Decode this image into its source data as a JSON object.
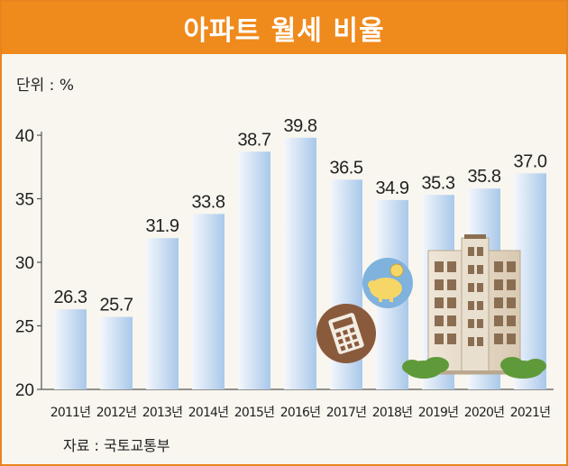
{
  "header": {
    "title": "아파트 월세 비율"
  },
  "unit_label": "단위 : %",
  "source_label": "자료 : 국토교통부",
  "colors": {
    "header": "#ef8a1c",
    "bar_top": "#f4f7fc",
    "bar_bottom": "#a9c8ea",
    "background": "#f8f6ef"
  },
  "chart_data": {
    "type": "bar",
    "categories": [
      "2011년",
      "2012년",
      "2013년",
      "2014년",
      "2015년",
      "2016년",
      "2017년",
      "2018년",
      "2019년",
      "2020년",
      "2021년"
    ],
    "values": [
      26.3,
      25.7,
      31.9,
      33.8,
      38.7,
      39.8,
      36.5,
      34.9,
      35.3,
      35.8,
      37.0
    ],
    "data_labels": [
      "26.3",
      "25.7",
      "31.9",
      "33.8",
      "38.7",
      "39.8",
      "36.5",
      "34.9",
      "35.3",
      "35.8",
      "37.0"
    ],
    "yticks": [
      "20",
      "25",
      "30",
      "35",
      "40"
    ],
    "ylim": [
      20,
      40
    ],
    "title": "아파트 월세 비율",
    "ylabel": "단위 : %",
    "xlabel": "",
    "grid": false
  },
  "decorations": [
    "calculator-icon",
    "piggy-bank-icon",
    "apartment-building-illustration",
    "shrub-icon"
  ]
}
